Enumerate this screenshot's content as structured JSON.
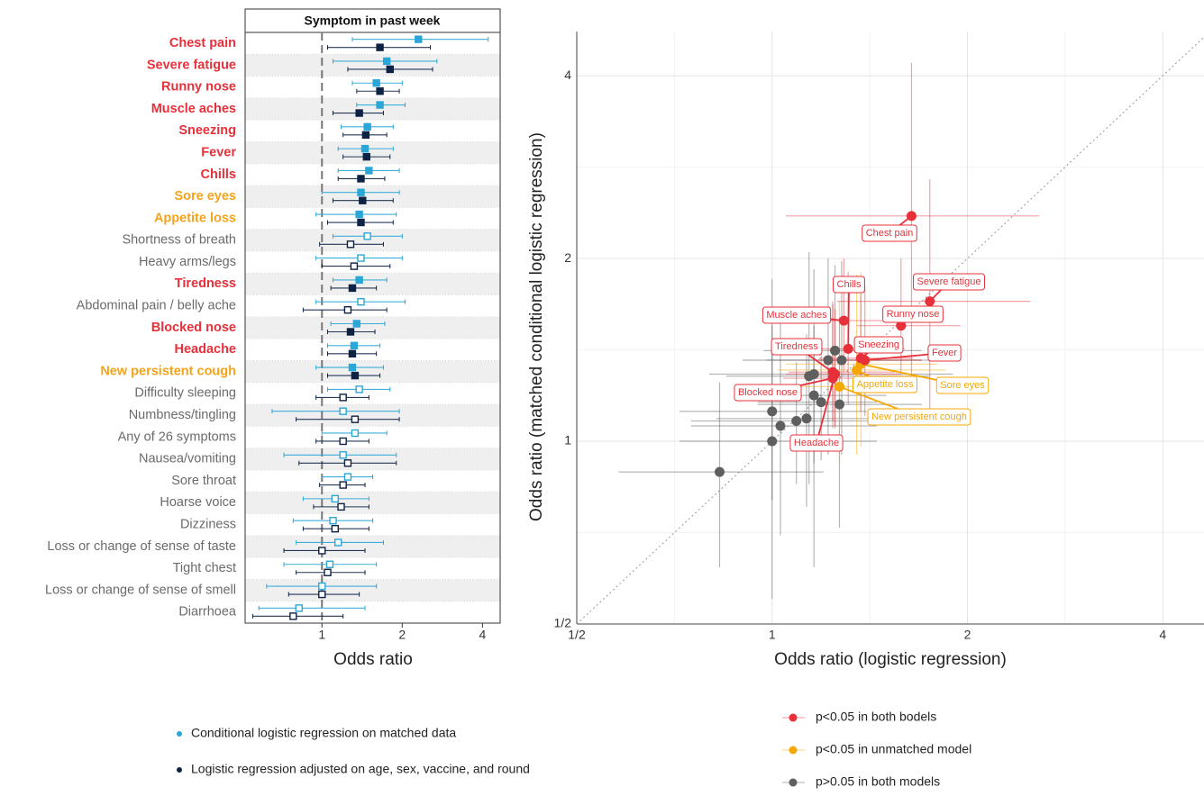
{
  "chart_data": [
    {
      "type": "forest",
      "title": "Symptom in past week",
      "xlabel": "Odds ratio",
      "log_scale": true,
      "xlim": [
        0.515,
        4.66
      ],
      "xticks": [
        1,
        2,
        4
      ],
      "reference_line": 1,
      "categories": [
        "Chest pain",
        "Severe fatigue",
        "Runny nose",
        "Muscle aches",
        "Sneezing",
        "Fever",
        "Chills",
        "Sore eyes",
        "Appetite loss",
        "Shortness of breath",
        "Heavy arms/legs",
        "Tiredness",
        "Abdominal pain / belly ache",
        "Blocked nose",
        "Headache",
        "New persistent cough",
        "Difficulty sleeping",
        "Numbness/tingling",
        "Any of 26 symptoms",
        "Nausea/vomiting",
        "Sore throat",
        "Hoarse voice",
        "Dizziness",
        "Loss or change of sense of taste",
        "Tight chest",
        "Loss or change of sense of smell",
        "Diarrhoea"
      ],
      "category_colors": [
        "#e8303a",
        "#e8303a",
        "#e8303a",
        "#e8303a",
        "#e8303a",
        "#e8303a",
        "#e8303a",
        "#f5a31a",
        "#f5a31a",
        "#6b6b6b",
        "#6b6b6b",
        "#e8303a",
        "#6b6b6b",
        "#e8303a",
        "#e8303a",
        "#f5a31a",
        "#6b6b6b",
        "#6b6b6b",
        "#6b6b6b",
        "#6b6b6b",
        "#6b6b6b",
        "#6b6b6b",
        "#6b6b6b",
        "#6b6b6b",
        "#6b6b6b",
        "#6b6b6b",
        "#6b6b6b"
      ],
      "series": [
        {
          "name": "Conditional logistic regression on matched data",
          "color": "#2aa7d6",
          "values": [
            2.3,
            1.75,
            1.6,
            1.65,
            1.48,
            1.45,
            1.5,
            1.4,
            1.38,
            1.48,
            1.4,
            1.38,
            1.4,
            1.35,
            1.32,
            1.3,
            1.38,
            1.2,
            1.33,
            1.2,
            1.25,
            1.12,
            1.1,
            1.15,
            1.07,
            1.0,
            0.82
          ],
          "lower": [
            1.3,
            1.1,
            1.3,
            1.35,
            1.18,
            1.15,
            1.15,
            1.0,
            0.95,
            1.1,
            0.95,
            1.1,
            0.95,
            1.08,
            1.05,
            0.95,
            1.05,
            0.65,
            1.0,
            0.72,
            1.0,
            0.85,
            0.78,
            0.8,
            0.72,
            0.62,
            0.58
          ],
          "upper": [
            4.2,
            2.7,
            2.0,
            2.05,
            1.85,
            1.85,
            1.95,
            1.95,
            1.9,
            2.0,
            2.0,
            1.75,
            2.05,
            1.72,
            1.65,
            1.7,
            1.8,
            1.95,
            1.75,
            1.9,
            1.55,
            1.5,
            1.55,
            1.7,
            1.6,
            1.6,
            1.45
          ]
        },
        {
          "name": "Logistic regression adjusted on age, sex, vaccine, and round",
          "color": "#0e2244",
          "values": [
            1.65,
            1.8,
            1.65,
            1.38,
            1.46,
            1.47,
            1.4,
            1.42,
            1.4,
            1.28,
            1.32,
            1.3,
            1.25,
            1.28,
            1.3,
            1.33,
            1.2,
            1.33,
            1.2,
            1.25,
            1.2,
            1.18,
            1.12,
            1.0,
            1.05,
            1.0,
            0.78
          ],
          "lower": [
            1.05,
            1.25,
            1.35,
            1.1,
            1.2,
            1.2,
            1.15,
            1.1,
            1.05,
            0.98,
            1.0,
            1.08,
            0.85,
            1.05,
            1.05,
            1.05,
            0.95,
            0.8,
            0.95,
            0.82,
            0.98,
            0.93,
            0.85,
            0.72,
            0.8,
            0.75,
            0.55
          ],
          "upper": [
            2.55,
            2.6,
            1.95,
            1.7,
            1.75,
            1.8,
            1.72,
            1.85,
            1.85,
            1.7,
            1.8,
            1.6,
            1.75,
            1.58,
            1.6,
            1.65,
            1.5,
            1.95,
            1.5,
            1.9,
            1.45,
            1.5,
            1.5,
            1.45,
            1.45,
            1.38,
            1.2
          ]
        }
      ]
    },
    {
      "type": "scatter",
      "xlabel": "Odds ratio (logistic regression)",
      "ylabel": "Odds ratio (matched conditional logistic regression)",
      "log_scale": true,
      "grid": true,
      "identity_line": true,
      "xlim": [
        0.5,
        4.63
      ],
      "ylim": [
        0.5,
        4.73
      ],
      "xticks": [
        {
          "value": 0.5,
          "label": "1/2"
        },
        1,
        2,
        4
      ],
      "yticks": [
        {
          "value": 0.5,
          "label": "1/2"
        },
        1,
        2,
        4
      ],
      "series": [
        {
          "name": "p<0.05 in both bodels",
          "color": "#e8303a",
          "labels": [
            "Chest pain",
            "Severe fatigue",
            "Runny nose",
            "Muscle aches",
            "Chills",
            "Sneezing",
            "Fever",
            "Tiredness",
            "Blocked nose",
            "Headache"
          ],
          "x": [
            1.64,
            1.75,
            1.58,
            1.29,
            1.31,
            1.37,
            1.39,
            1.24,
            1.24,
            1.25
          ],
          "y": [
            2.35,
            1.7,
            1.55,
            1.58,
            1.42,
            1.37,
            1.36,
            1.3,
            1.27,
            1.29
          ],
          "xlower": [
            1.05,
            1.26,
            1.35,
            1.1,
            1.12,
            1.18,
            1.18,
            1.06,
            1.04,
            1.05
          ],
          "xupper": [
            2.58,
            2.5,
            1.95,
            1.6,
            1.6,
            1.65,
            1.7,
            1.55,
            1.55,
            1.58
          ],
          "ylower": [
            1.27,
            1.1,
            1.3,
            1.3,
            1.15,
            1.12,
            1.1,
            1.08,
            1.05,
            1.06
          ],
          "yupper": [
            4.2,
            2.7,
            2.0,
            2.0,
            1.9,
            1.75,
            1.8,
            1.7,
            1.68,
            1.65
          ]
        },
        {
          "name": "p<0.05 in unmatched model",
          "color": "#f5a800",
          "labels": [
            "Sore eyes",
            "Appetite loss",
            "New persistent cough"
          ],
          "x": [
            1.37,
            1.35,
            1.27
          ],
          "y": [
            1.34,
            1.31,
            1.23
          ],
          "xlower": [
            1.05,
            1.02,
            1.0
          ],
          "xupper": [
            1.8,
            1.85,
            1.65
          ],
          "ylower": [
            0.98,
            0.95,
            0.92
          ],
          "yupper": [
            1.9,
            1.88,
            1.7
          ]
        },
        {
          "name": "p>0.05 in both models",
          "color": "#5f5f5f",
          "x": [
            1.25,
            1.28,
            1.22,
            1.16,
            1.14,
            1.16,
            1.19,
            1.27,
            1.0,
            1.13,
            1.09,
            1.03,
            1.0,
            0.83
          ],
          "y": [
            1.41,
            1.36,
            1.36,
            1.29,
            1.28,
            1.19,
            1.16,
            1.15,
            1.12,
            1.09,
            1.08,
            1.06,
            1.0,
            0.89
          ],
          "xlower": [
            0.97,
            0.98,
            0.9,
            0.8,
            0.85,
            0.88,
            0.95,
            0.95,
            0.72,
            0.82,
            0.75,
            0.75,
            0.72,
            0.58
          ],
          "xupper": [
            1.7,
            1.8,
            1.7,
            1.9,
            1.75,
            1.5,
            1.45,
            1.7,
            1.4,
            1.52,
            1.55,
            1.45,
            1.45,
            1.2
          ],
          "ylower": [
            1.05,
            0.95,
            0.95,
            0.62,
            0.85,
            0.92,
            0.93,
            0.72,
            0.8,
            0.78,
            0.85,
            0.7,
            0.55,
            0.62
          ],
          "yupper": [
            1.95,
            1.98,
            2.0,
            1.92,
            2.05,
            1.55,
            1.45,
            1.6,
            1.55,
            1.5,
            1.35,
            1.6,
            1.85,
            1.25
          ]
        }
      ]
    }
  ]
}
